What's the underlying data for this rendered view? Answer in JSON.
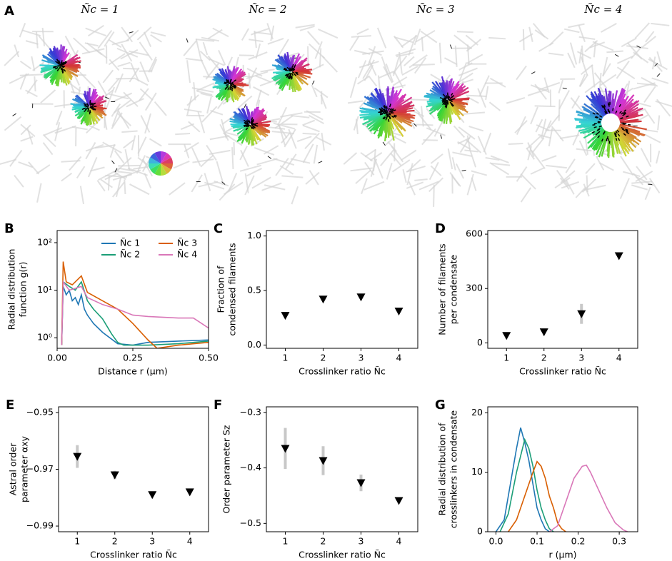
{
  "panel_a": {
    "label": "A",
    "titles": [
      "Ñc = 1",
      "Ñc = 2",
      "Ñc = 3",
      "Ñc = 4"
    ]
  },
  "chart_data": [
    {
      "type": "line",
      "label": "B",
      "ylabel": [
        "Radial distribution",
        "function g(r)"
      ],
      "xlabel": "Distance r (μm)",
      "log_y": true,
      "xlim": [
        0,
        0.5
      ],
      "ylim": [
        0.6,
        180
      ],
      "xticks": [
        {
          "value": 0,
          "label": "0.00"
        },
        {
          "value": 0.25,
          "label": "0.25"
        },
        {
          "value": 0.5,
          "label": "0.50"
        }
      ],
      "yticks": [
        {
          "value": 1,
          "label": "10⁰"
        },
        {
          "value": 10,
          "label": "10¹"
        },
        {
          "value": 100,
          "label": "10²"
        }
      ],
      "legend": "upper right",
      "series": [
        {
          "name": "Ñc 1",
          "color": "#1f77b4",
          "x": [
            0.015,
            0.02,
            0.03,
            0.04,
            0.05,
            0.06,
            0.07,
            0.08,
            0.09,
            0.1,
            0.12,
            0.15,
            0.2,
            0.25,
            0.3,
            0.4,
            0.5
          ],
          "values": [
            0.7,
            12,
            8,
            10,
            6,
            7,
            5,
            8,
            4,
            3,
            2,
            1.3,
            0.75,
            0.7,
            0.8,
            0.85,
            0.9
          ]
        },
        {
          "name": "Ñc 2",
          "color": "#1b9e77",
          "x": [
            0.015,
            0.02,
            0.04,
            0.06,
            0.08,
            0.1,
            0.12,
            0.15,
            0.18,
            0.2,
            0.22,
            0.3,
            0.4,
            0.5
          ],
          "values": [
            0.7,
            15,
            12,
            10,
            15,
            6,
            4,
            2.5,
            1.2,
            0.8,
            0.7,
            0.7,
            0.75,
            0.85
          ]
        },
        {
          "name": "Ñc 3",
          "color": "#d95f02",
          "x": [
            0.015,
            0.02,
            0.03,
            0.05,
            0.08,
            0.1,
            0.15,
            0.2,
            0.25,
            0.3,
            0.33,
            0.4,
            0.5
          ],
          "values": [
            0.7,
            40,
            15,
            13,
            20,
            9,
            6,
            4,
            2,
            0.9,
            0.6,
            0.7,
            0.8
          ]
        },
        {
          "name": "Ñc 4",
          "color": "#d977b8",
          "x": [
            0.015,
            0.02,
            0.04,
            0.08,
            0.1,
            0.15,
            0.2,
            0.25,
            0.3,
            0.4,
            0.45,
            0.5
          ],
          "values": [
            0.7,
            15,
            10,
            12,
            7,
            5,
            4,
            3,
            2.8,
            2.6,
            2.6,
            1.6
          ]
        }
      ]
    },
    {
      "type": "scatter",
      "label": "C",
      "ylabel": [
        "Fraction of",
        "condensed filaments"
      ],
      "xlabel": "Crosslinker ratio Ñc",
      "xlim": [
        0.5,
        4.5
      ],
      "ylim": [
        -0.03,
        1.05
      ],
      "xticks": [
        1,
        2,
        3,
        4
      ],
      "yticks": [
        {
          "value": 0,
          "label": "0.0"
        },
        {
          "value": 0.5,
          "label": "0.5"
        },
        {
          "value": 1,
          "label": "1.0"
        }
      ],
      "color": "#000000",
      "x": [
        1,
        2,
        3,
        4
      ],
      "values": [
        0.27,
        0.42,
        0.44,
        0.31
      ]
    },
    {
      "type": "scatter",
      "label": "D",
      "ylabel": [
        "Number of filaments",
        "per condensate"
      ],
      "xlabel": "Crosslinker ratio Ñc",
      "xlim": [
        0.5,
        4.5
      ],
      "ylim": [
        -30,
        620
      ],
      "xticks": [
        1,
        2,
        3,
        4
      ],
      "yticks": [
        0,
        300,
        600
      ],
      "color": "#000000",
      "error_color": "#c8c8c8",
      "x": [
        1,
        2,
        3,
        4
      ],
      "values": [
        40,
        60,
        160,
        480
      ],
      "errors": [
        0,
        0,
        55,
        0
      ]
    },
    {
      "type": "scatter",
      "label": "E",
      "ylabel": [
        "Astral order",
        "parameter αxy"
      ],
      "xlabel": "Crosslinker ratio Ñc",
      "xlim": [
        0.5,
        4.5
      ],
      "ylim": [
        -0.992,
        -0.948
      ],
      "xticks": [
        1,
        2,
        3,
        4
      ],
      "yticks": [
        {
          "value": -0.95,
          "label": "−0.95"
        },
        {
          "value": -0.97,
          "label": "−0.97"
        },
        {
          "value": -0.99,
          "label": "−0.99"
        }
      ],
      "color": "#000000",
      "error_color": "#c8c8c8",
      "x": [
        1,
        2,
        3,
        4
      ],
      "values": [
        -0.9655,
        -0.972,
        -0.979,
        -0.978
      ],
      "errors": [
        0.004,
        0.0015,
        0.0005,
        0.0008
      ]
    },
    {
      "type": "scatter",
      "label": "F",
      "ylabel": [
        "Order parameter Sz"
      ],
      "xlabel": "Crosslinker ratio Ñc",
      "xlim": [
        0.5,
        4.5
      ],
      "ylim": [
        -0.515,
        -0.29
      ],
      "xticks": [
        1,
        2,
        3,
        4
      ],
      "yticks": [
        {
          "value": -0.3,
          "label": "−0.3"
        },
        {
          "value": -0.4,
          "label": "−0.4"
        },
        {
          "value": -0.5,
          "label": "−0.5"
        }
      ],
      "color": "#000000",
      "error_color": "#c8c8c8",
      "x": [
        1,
        2,
        3,
        4
      ],
      "values": [
        -0.365,
        -0.387,
        -0.427,
        -0.459
      ],
      "errors": [
        0.037,
        0.026,
        0.015,
        0.004
      ]
    },
    {
      "type": "line",
      "label": "G",
      "ylabel": [
        "Radial distribution of",
        "crosslinkers in condensate"
      ],
      "xlabel": "r (μm)",
      "xlim": [
        -0.02,
        0.345
      ],
      "ylim": [
        0,
        21
      ],
      "xticks": [
        {
          "value": 0,
          "label": "0.0"
        },
        {
          "value": 0.1,
          "label": "0.1"
        },
        {
          "value": 0.2,
          "label": "0.2"
        },
        {
          "value": 0.3,
          "label": "0.3"
        }
      ],
      "yticks": [
        0,
        10,
        20
      ],
      "series": [
        {
          "color": "#1f77b4",
          "x": [
            0,
            0.02,
            0.04,
            0.05,
            0.06,
            0.07,
            0.08,
            0.09,
            0.1,
            0.11,
            0.12,
            0.13
          ],
          "values": [
            0,
            2,
            10,
            14,
            17.5,
            15,
            12,
            8,
            4,
            2,
            0.5,
            0
          ]
        },
        {
          "color": "#1b9e77",
          "x": [
            0.01,
            0.03,
            0.05,
            0.07,
            0.08,
            0.09,
            0.1,
            0.11,
            0.12,
            0.13,
            0.14
          ],
          "values": [
            0,
            3,
            10,
            15.5,
            14,
            11,
            7,
            4,
            2,
            0.5,
            0
          ]
        },
        {
          "color": "#d95f02",
          "x": [
            0.03,
            0.05,
            0.07,
            0.09,
            0.1,
            0.11,
            0.12,
            0.13,
            0.14,
            0.15,
            0.16,
            0.17
          ],
          "values": [
            0,
            2,
            6,
            10,
            11.8,
            11,
            9,
            6,
            4,
            1.5,
            0.5,
            0
          ]
        },
        {
          "color": "#d977b8",
          "x": [
            0.13,
            0.15,
            0.17,
            0.19,
            0.21,
            0.22,
            0.23,
            0.25,
            0.27,
            0.29,
            0.31,
            0.32
          ],
          "values": [
            0,
            1,
            5,
            9,
            11,
            11.2,
            10,
            7,
            4,
            1.5,
            0.3,
            0
          ]
        }
      ]
    }
  ]
}
